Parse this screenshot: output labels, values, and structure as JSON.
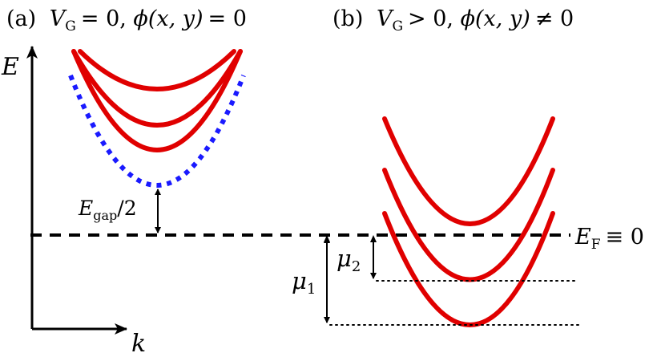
{
  "panel_a": {
    "title_prefix": "(a)",
    "title_eq": "= 0, ",
    "title_phi_eq": "= 0",
    "gate_symbol": "V",
    "gate_sub": "G",
    "phi_symbol": "ϕ",
    "phi_args": "(x, y)"
  },
  "panel_b": {
    "title_prefix": "(b)",
    "title_eq": "> 0, ",
    "title_phi_eq": "≠ 0",
    "gate_symbol": "V",
    "gate_sub": "G",
    "phi_symbol": "ϕ",
    "phi_args": "(x, y)"
  },
  "axes": {
    "y_label": "E",
    "x_label": "k"
  },
  "annotations": {
    "gap_main": "E",
    "gap_sub": "gap",
    "gap_tail": "/2",
    "fermi_main": "E",
    "fermi_sub": "F",
    "fermi_tail": "≡ 0",
    "mu1_main": "μ",
    "mu1_sub": "1",
    "mu2_main": "μ",
    "mu2_sub": "2"
  },
  "colors": {
    "bands": "#e00000",
    "gap_edge": "#1a1aff",
    "fermi_level": "#000000"
  }
}
